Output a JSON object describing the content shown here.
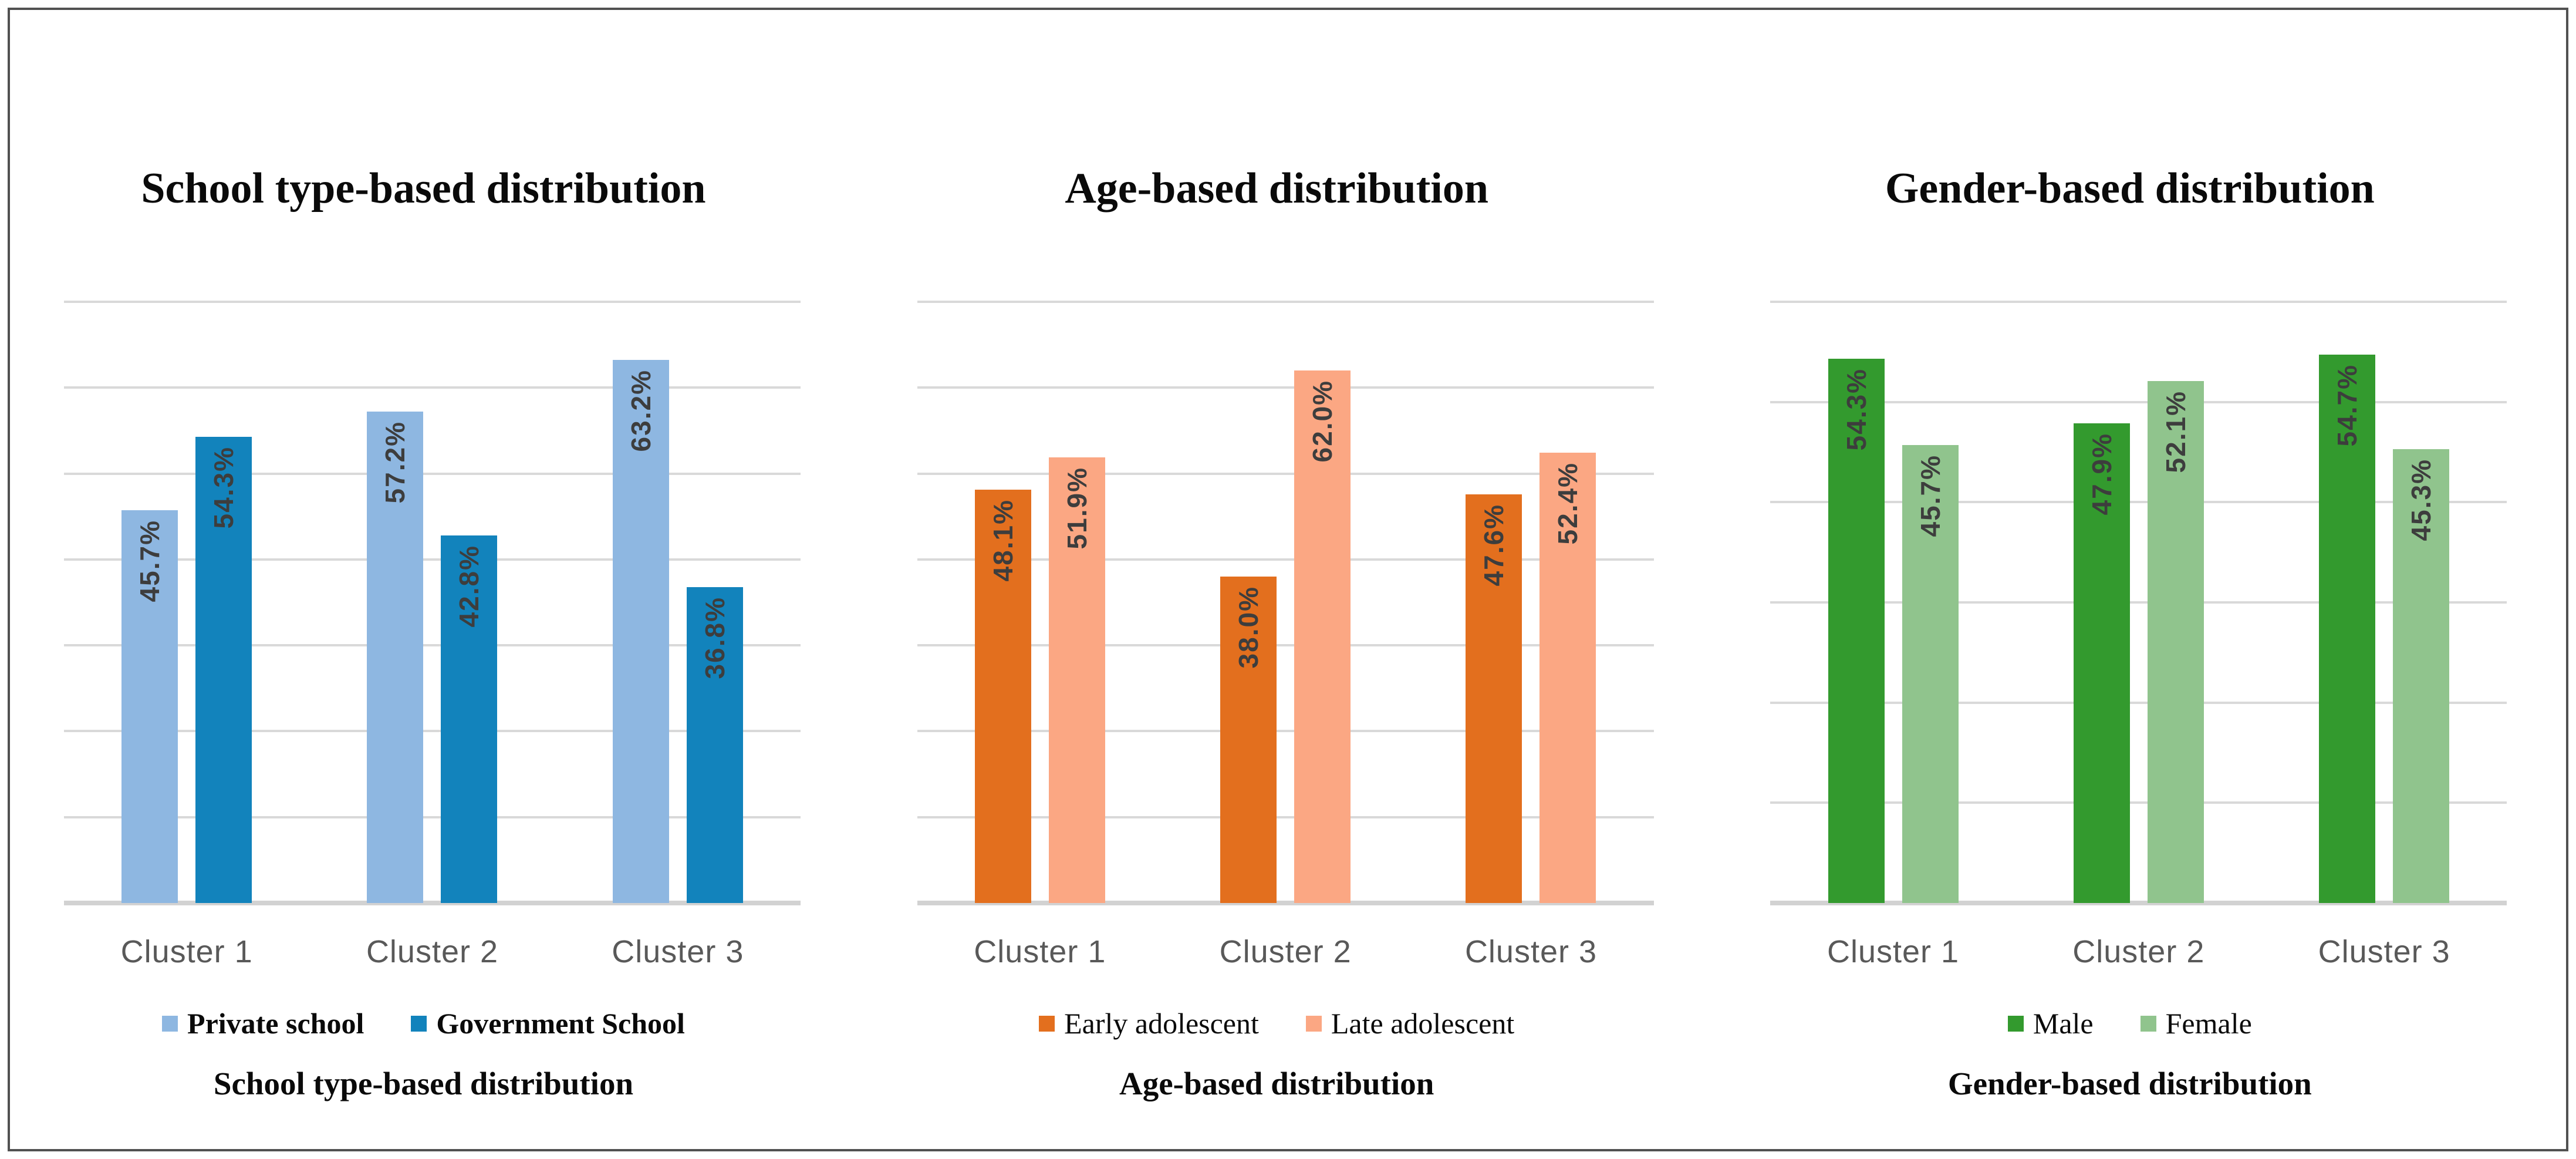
{
  "figure": {
    "background": "#ffffff",
    "border_color": "#515151"
  },
  "chart_data": [
    {
      "type": "bar",
      "title": "School type-based distribution",
      "caption": "School type-based distribution",
      "categories": [
        "Cluster 1",
        "Cluster 2",
        "Cluster 3"
      ],
      "series": [
        {
          "name": "Private school",
          "color": "#8EB7E1",
          "values": [
            45.7,
            57.2,
            63.2
          ],
          "labels": [
            "45.7%",
            "57.2%",
            "63.2%"
          ]
        },
        {
          "name": "Government School",
          "color": "#1283BC",
          "values": [
            54.3,
            42.8,
            36.8
          ],
          "labels": [
            "54.3%",
            "42.8%",
            "36.8%"
          ]
        }
      ],
      "xlabel": "",
      "ylabel": "",
      "ylim": [
        0,
        70
      ],
      "gridline_step": 10,
      "grid": true,
      "y_axis_labels_visible": false,
      "legend_position": "bottom",
      "legend_weight": "bold",
      "data_label_style": "rotated-inside-end"
    },
    {
      "type": "bar",
      "title": "Age-based distribution",
      "caption": "Age-based distribution",
      "categories": [
        "Cluster 1",
        "Cluster 2",
        "Cluster 3"
      ],
      "series": [
        {
          "name": "Early adolescent",
          "color": "#E36F1E",
          "values": [
            48.1,
            38.0,
            47.6
          ],
          "labels": [
            "48.1%",
            "38.0%",
            "47.6%"
          ]
        },
        {
          "name": "Late adolescent",
          "color": "#FBA783",
          "values": [
            51.9,
            62.0,
            52.4
          ],
          "labels": [
            "51.9%",
            "62.0%",
            "52.4%"
          ]
        }
      ],
      "xlabel": "",
      "ylabel": "",
      "ylim": [
        0,
        70
      ],
      "gridline_step": 10,
      "grid": true,
      "y_axis_labels_visible": false,
      "legend_position": "bottom",
      "legend_weight": "normal",
      "data_label_style": "rotated-inside-end"
    },
    {
      "type": "bar",
      "title": "Gender-based distribution",
      "caption": "Gender-based distribution",
      "categories": [
        "Cluster 1",
        "Cluster 2",
        "Cluster 3"
      ],
      "series": [
        {
          "name": "Male",
          "color": "#339A2E",
          "values": [
            54.3,
            47.9,
            54.7
          ],
          "labels": [
            "54.3%",
            "47.9%",
            "54.7%"
          ]
        },
        {
          "name": "Female",
          "color": "#90C48D",
          "values": [
            45.7,
            52.1,
            45.3
          ],
          "labels": [
            "45.7%",
            "52.1%",
            "45.3%"
          ]
        }
      ],
      "xlabel": "",
      "ylabel": "",
      "ylim": [
        0,
        60
      ],
      "gridline_step": 10,
      "grid": true,
      "y_axis_labels_visible": false,
      "legend_position": "bottom",
      "legend_weight": "normal",
      "data_label_style": "rotated-inside-end"
    }
  ]
}
